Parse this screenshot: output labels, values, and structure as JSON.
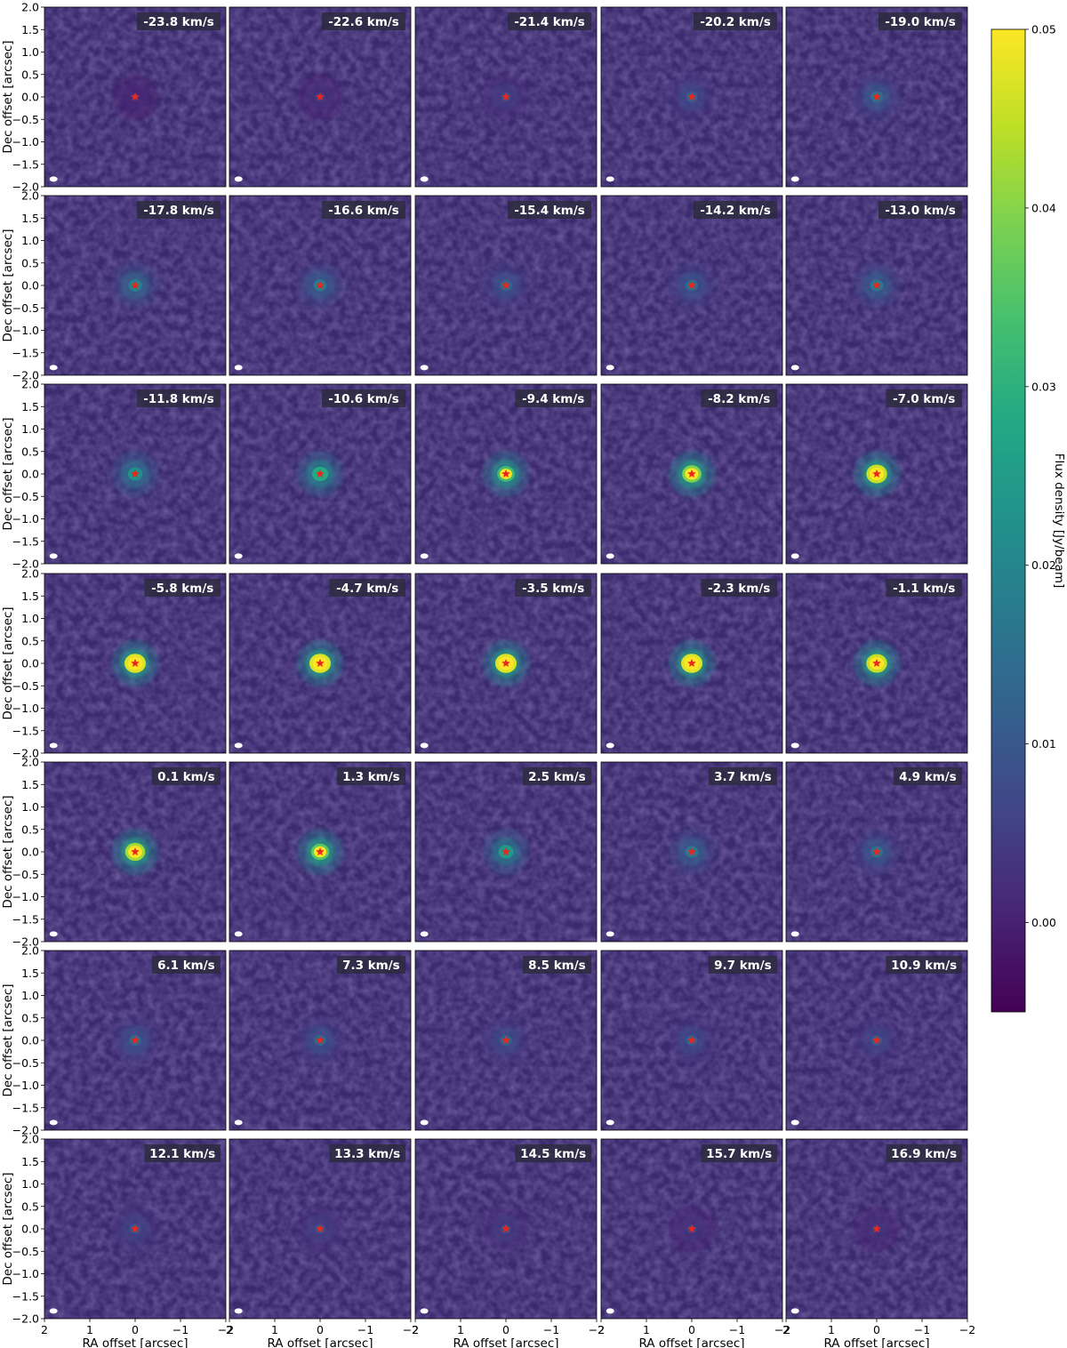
{
  "chart_data": {
    "type": "heatmap",
    "layout": {
      "rows": 7,
      "cols": 5
    },
    "xlabel": "RA offset [arcsec]",
    "ylabel": "Dec offset [arcsec]",
    "xlim": [
      2,
      -2
    ],
    "ylim": [
      -2,
      2
    ],
    "x_ticks": [
      2,
      1,
      0,
      -1,
      -2
    ],
    "x_tick_labels": [
      "2",
      "1",
      "0",
      "−1",
      "−2"
    ],
    "y_ticks": [
      2.0,
      1.5,
      1.0,
      0.5,
      0.0,
      -0.5,
      -1.0,
      -1.5,
      -2.0
    ],
    "y_tick_labels": [
      "2.0",
      "1.5",
      "1.0",
      "0.5",
      "0.0",
      "−0.5",
      "−1.0",
      "−1.5",
      "−2.0"
    ],
    "colormap": "viridis",
    "colorbar": {
      "label": "Flux density [Jy/beam]",
      "range": [
        -0.005,
        0.05
      ],
      "ticks": [
        0.0,
        0.01,
        0.02,
        0.03,
        0.04,
        0.05
      ],
      "tick_labels": [
        "0.00",
        "0.01",
        "0.02",
        "0.03",
        "0.04",
        "0.05"
      ]
    },
    "star_marker": {
      "symbol": "star",
      "color": "#e8281e",
      "position_arcsec": [
        0,
        0
      ]
    },
    "beam_ellipse": {
      "color": "#ffffff",
      "center_arcsec": [
        1.8,
        -1.83
      ]
    },
    "panels": [
      {
        "label": "-23.8 km/s",
        "peak_flux": 0.003
      },
      {
        "label": "-22.6 km/s",
        "peak_flux": 0.005
      },
      {
        "label": "-21.4 km/s",
        "peak_flux": 0.008
      },
      {
        "label": "-20.2 km/s",
        "peak_flux": 0.012
      },
      {
        "label": "-19.0 km/s",
        "peak_flux": 0.016
      },
      {
        "label": "-17.8 km/s",
        "peak_flux": 0.02
      },
      {
        "label": "-16.6 km/s",
        "peak_flux": 0.018
      },
      {
        "label": "-15.4 km/s",
        "peak_flux": 0.014
      },
      {
        "label": "-14.2 km/s",
        "peak_flux": 0.015
      },
      {
        "label": "-13.0 km/s",
        "peak_flux": 0.018
      },
      {
        "label": "-11.8 km/s",
        "peak_flux": 0.024
      },
      {
        "label": "-10.6 km/s",
        "peak_flux": 0.03
      },
      {
        "label": "-9.4 km/s",
        "peak_flux": 0.035
      },
      {
        "label": "-8.2 km/s",
        "peak_flux": 0.042
      },
      {
        "label": "-7.0 km/s",
        "peak_flux": 0.048
      },
      {
        "label": "-5.8 km/s",
        "peak_flux": 0.05
      },
      {
        "label": "-4.7 km/s",
        "peak_flux": 0.05
      },
      {
        "label": "-3.5 km/s",
        "peak_flux": 0.05
      },
      {
        "label": "-2.3 km/s",
        "peak_flux": 0.05
      },
      {
        "label": "-1.1 km/s",
        "peak_flux": 0.048
      },
      {
        "label": "0.1 km/s",
        "peak_flux": 0.045
      },
      {
        "label": "1.3 km/s",
        "peak_flux": 0.038
      },
      {
        "label": "2.5 km/s",
        "peak_flux": 0.026
      },
      {
        "label": "3.7 km/s",
        "peak_flux": 0.018
      },
      {
        "label": "4.9 km/s",
        "peak_flux": 0.016
      },
      {
        "label": "6.1 km/s",
        "peak_flux": 0.014
      },
      {
        "label": "7.3 km/s",
        "peak_flux": 0.014
      },
      {
        "label": "8.5 km/s",
        "peak_flux": 0.013
      },
      {
        "label": "9.7 km/s",
        "peak_flux": 0.012
      },
      {
        "label": "10.9 km/s",
        "peak_flux": 0.011
      },
      {
        "label": "12.1 km/s",
        "peak_flux": 0.01
      },
      {
        "label": "13.3 km/s",
        "peak_flux": 0.009
      },
      {
        "label": "14.5 km/s",
        "peak_flux": 0.008
      },
      {
        "label": "15.7 km/s",
        "peak_flux": 0.006
      },
      {
        "label": "16.9 km/s",
        "peak_flux": 0.005
      }
    ]
  }
}
